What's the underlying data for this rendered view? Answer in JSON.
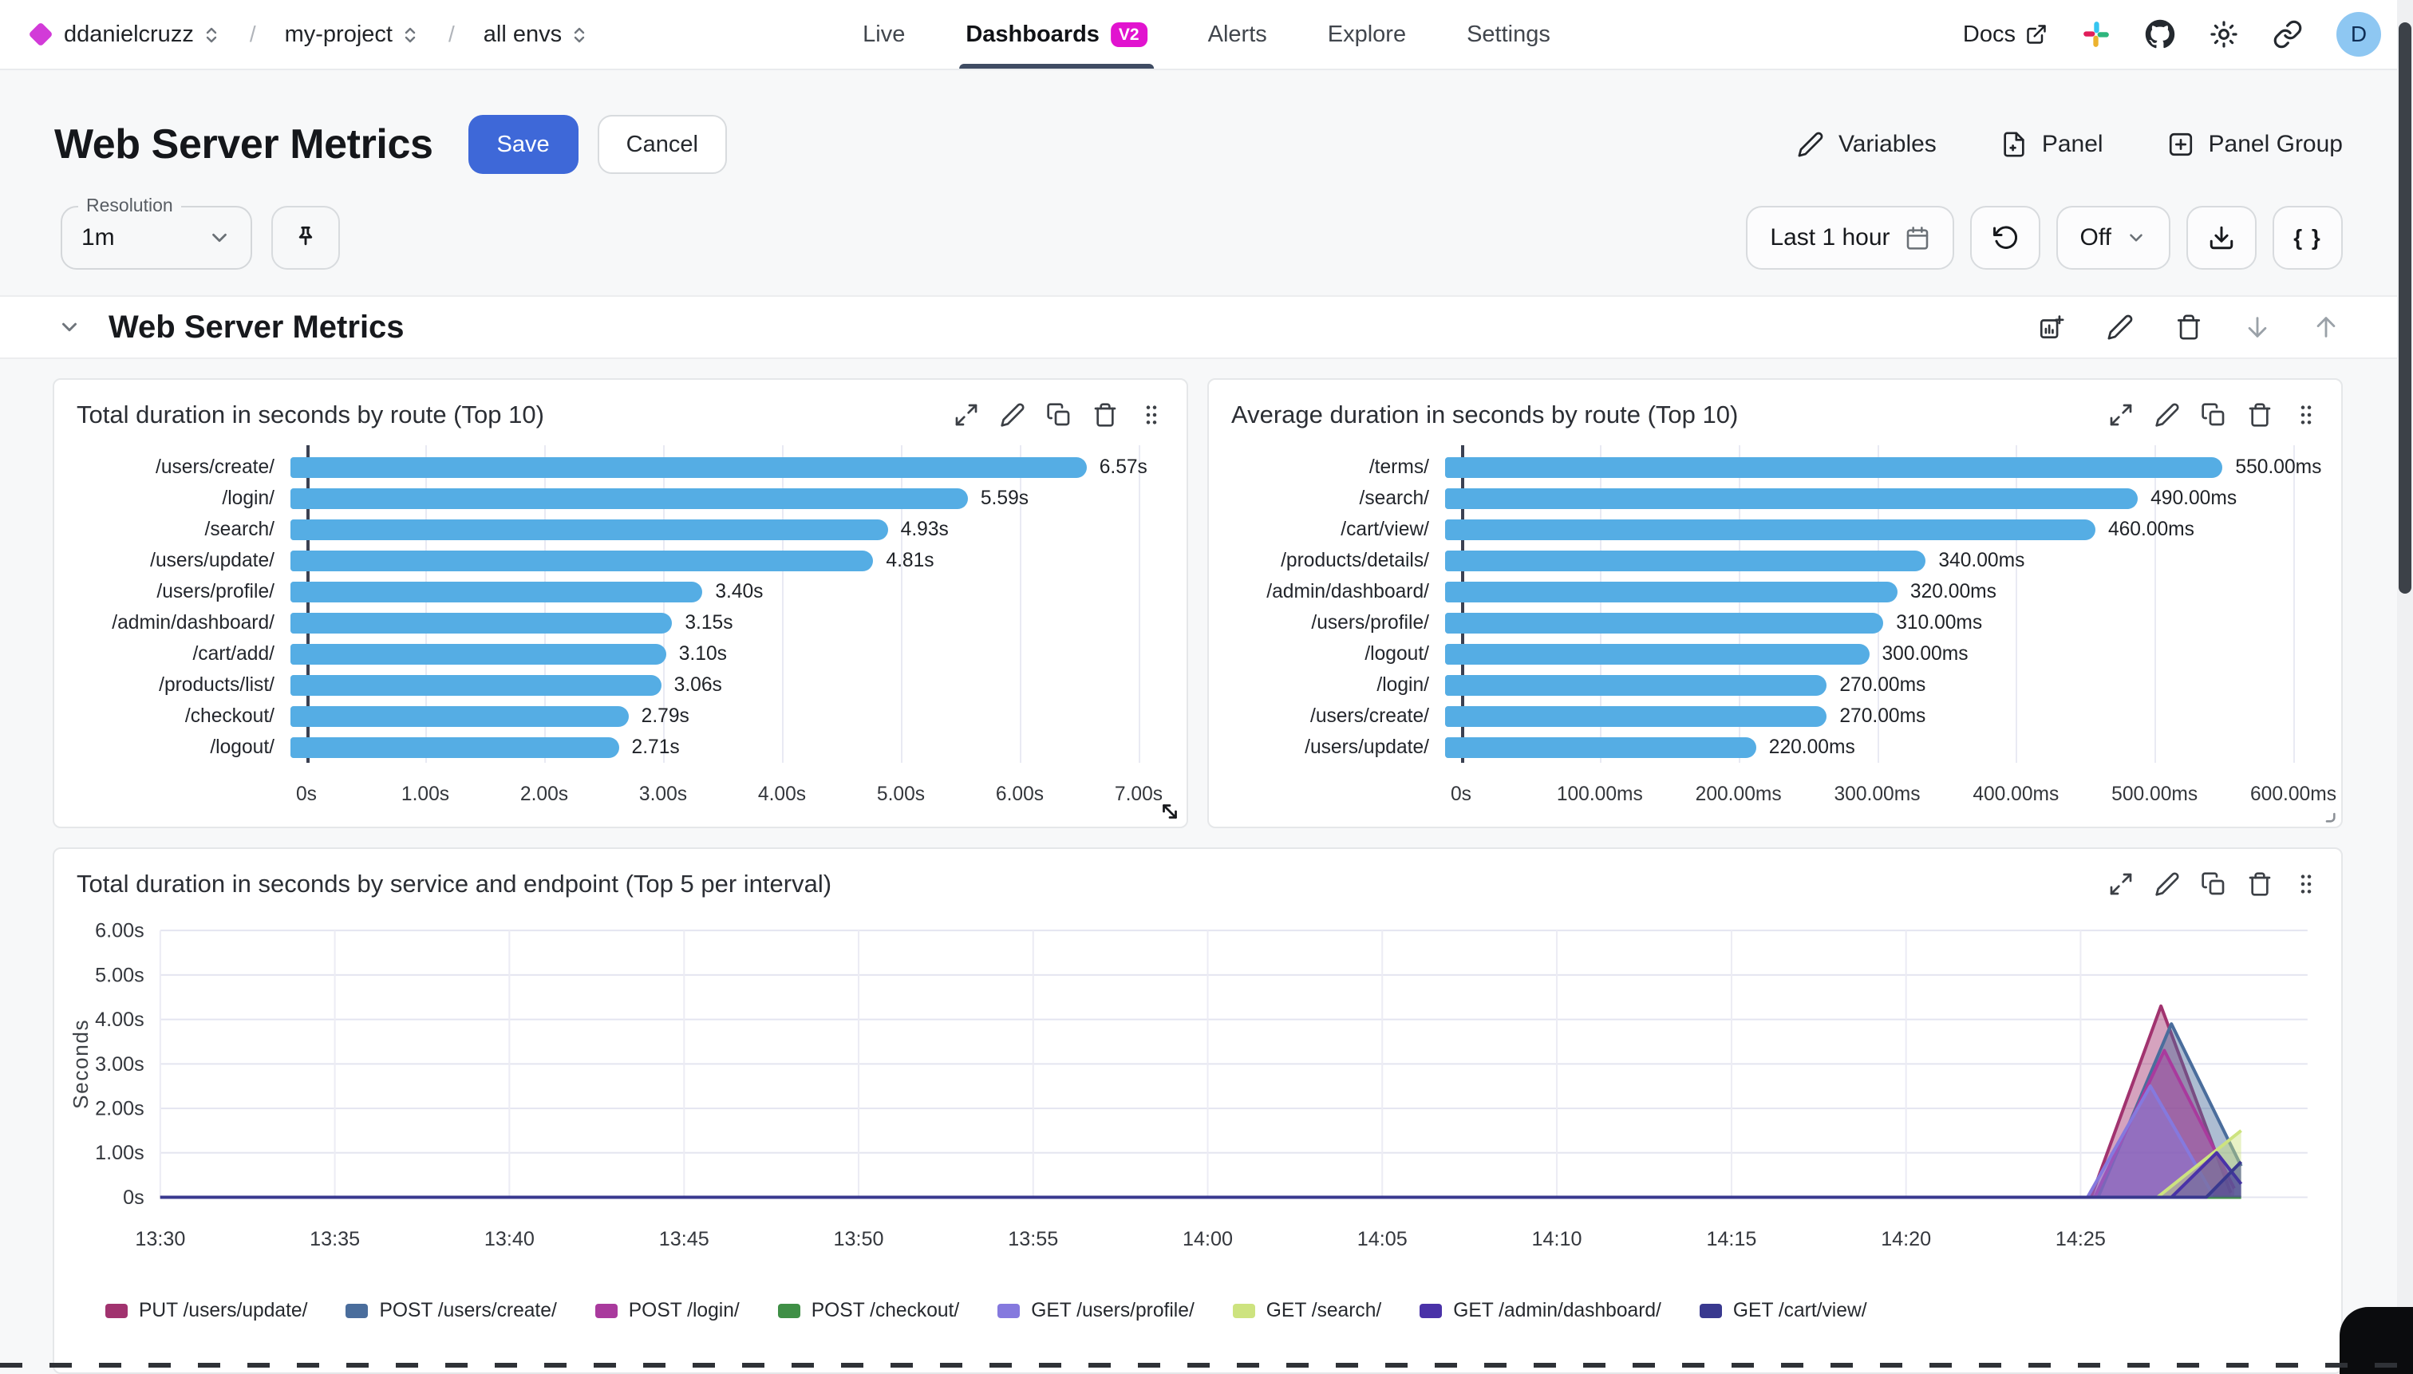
{
  "header": {
    "breadcrumb": {
      "org": "ddanielcruzz",
      "separator": "/",
      "project": "my-project",
      "env": "all envs"
    },
    "tabs": [
      {
        "label": "Live",
        "active": false
      },
      {
        "label": "Dashboards",
        "badge": "V2",
        "active": true
      },
      {
        "label": "Alerts",
        "active": false
      },
      {
        "label": "Explore",
        "active": false
      },
      {
        "label": "Settings",
        "active": false
      }
    ],
    "docs_label": "Docs",
    "avatar_letter": "D"
  },
  "toolbar": {
    "title": "Web Server Metrics",
    "save_label": "Save",
    "cancel_label": "Cancel",
    "variables_label": "Variables",
    "panel_label": "Panel",
    "panel_group_label": "Panel Group"
  },
  "controls": {
    "resolution_label": "Resolution",
    "resolution_value": "1m",
    "time_range": "Last 1 hour",
    "auto_refresh": "Off",
    "braces_label": "{ }"
  },
  "section": {
    "title": "Web Server Metrics"
  },
  "icons": {
    "breadcrumb-select": "⇅",
    "external-link": "↗",
    "slack": "pinwheel",
    "github": "octocat",
    "theme": "sun",
    "share": "chain-link",
    "edit": "pencil",
    "add-panel": "file-plus",
    "add-panel-group": "plus-square",
    "pin": "pushpin",
    "calendar": "calendar",
    "refresh": "↺",
    "download": "⤓",
    "query": "{ }",
    "expand": "diagonal-arrows",
    "copy": "⧉",
    "delete": "trash",
    "drag": "six-dots",
    "add-chart": "chart-plus",
    "move-down": "↓",
    "move-up": "↑",
    "collapse": "⌄"
  },
  "colors": {
    "accent_blue": "#3e68d8",
    "badge_magenta": "#e113cf",
    "brand_diamond": "#d23bd8",
    "bar_blue": "#55ade4",
    "active_tab_underline": "#3f4c63",
    "avatar_bg": "#8ec7f2"
  },
  "chart_data": [
    {
      "type": "bar",
      "orientation": "horizontal",
      "title": "Total duration in seconds by route (Top 10)",
      "categories": [
        "/users/create/",
        "/login/",
        "/search/",
        "/users/update/",
        "/users/profile/",
        "/admin/dashboard/",
        "/cart/add/",
        "/products/list/",
        "/checkout/",
        "/logout/"
      ],
      "values": [
        6.57,
        5.59,
        4.93,
        4.81,
        3.4,
        3.15,
        3.1,
        3.06,
        2.79,
        2.71
      ],
      "value_labels": [
        "6.57s",
        "5.59s",
        "4.93s",
        "4.81s",
        "3.40s",
        "3.15s",
        "3.10s",
        "3.06s",
        "2.79s",
        "2.71s"
      ],
      "xlim": [
        0,
        7
      ],
      "x_ticks": [
        "0s",
        "1.00s",
        "2.00s",
        "3.00s",
        "4.00s",
        "5.00s",
        "6.00s",
        "7.00s"
      ],
      "bar_color": "#55ade4",
      "grid": true
    },
    {
      "type": "bar",
      "orientation": "horizontal",
      "title": "Average duration in seconds by route (Top 10)",
      "categories": [
        "/terms/",
        "/search/",
        "/cart/view/",
        "/products/details/",
        "/admin/dashboard/",
        "/users/profile/",
        "/logout/",
        "/login/",
        "/users/create/",
        "/users/update/"
      ],
      "values": [
        550,
        490,
        460,
        340,
        320,
        310,
        300,
        270,
        270,
        220
      ],
      "value_labels": [
        "550.00ms",
        "490.00ms",
        "460.00ms",
        "340.00ms",
        "320.00ms",
        "310.00ms",
        "300.00ms",
        "270.00ms",
        "270.00ms",
        "220.00ms"
      ],
      "xlim": [
        0,
        600
      ],
      "x_ticks": [
        "0s",
        "100.00ms",
        "200.00ms",
        "300.00ms",
        "400.00ms",
        "500.00ms",
        "600.00ms"
      ],
      "bar_color": "#55ade4",
      "grid": true
    },
    {
      "type": "area",
      "title": "Total duration in seconds by service and endpoint (Top 5 per interval)",
      "ylabel": "Seconds",
      "ylim": [
        0,
        6
      ],
      "y_ticks": [
        "0s",
        "1.00s",
        "2.00s",
        "3.00s",
        "4.00s",
        "5.00s",
        "6.00s"
      ],
      "x_ticks": [
        "13:30",
        "13:35",
        "13:40",
        "13:45",
        "13:50",
        "13:55",
        "14:00",
        "14:05",
        "14:10",
        "14:15",
        "14:20",
        "14:25"
      ],
      "x_tick_minutes": [
        0,
        5,
        10,
        15,
        20,
        25,
        30,
        35,
        40,
        45,
        50,
        55
      ],
      "x_domain_minutes": [
        0,
        61.5
      ],
      "grid": true,
      "legend_position": "bottom",
      "series": [
        {
          "name": "PUT /users/update/",
          "color": "#a1336f",
          "points_min_sec": [
            [
              0,
              0
            ],
            [
              55.3,
              0
            ],
            [
              57.3,
              4.3
            ],
            [
              59.3,
              0.1
            ]
          ]
        },
        {
          "name": "POST /users/create/",
          "color": "#4a6d9c",
          "points_min_sec": [
            [
              0,
              0
            ],
            [
              55.5,
              0
            ],
            [
              57.6,
              3.9
            ],
            [
              59.6,
              0.7
            ]
          ]
        },
        {
          "name": "POST /login/",
          "color": "#a93a9d",
          "points_min_sec": [
            [
              0,
              0
            ],
            [
              55.4,
              0
            ],
            [
              57.4,
              3.3
            ],
            [
              59.4,
              0.2
            ]
          ]
        },
        {
          "name": "POST /checkout/",
          "color": "#3f8f46",
          "points_min_sec": [
            [
              0,
              0
            ],
            [
              59.6,
              0
            ]
          ]
        },
        {
          "name": "GET /users/profile/",
          "color": "#8579de",
          "points_min_sec": [
            [
              0,
              0
            ],
            [
              55.2,
              0
            ],
            [
              57.0,
              2.5
            ],
            [
              58.8,
              0.05
            ]
          ]
        },
        {
          "name": "GET /search/",
          "color": "#cde37f",
          "points_min_sec": [
            [
              0,
              0
            ],
            [
              57.2,
              0
            ],
            [
              59.6,
              1.5
            ]
          ]
        },
        {
          "name": "GET /admin/dashboard/",
          "color": "#4a32a8",
          "points_min_sec": [
            [
              0,
              0
            ],
            [
              57.6,
              0
            ],
            [
              58.9,
              1.0
            ],
            [
              59.6,
              0.3
            ]
          ]
        },
        {
          "name": "GET /cart/view/",
          "color": "#39398f",
          "points_min_sec": [
            [
              0,
              0
            ],
            [
              58.6,
              0
            ],
            [
              59.6,
              0.8
            ]
          ]
        }
      ]
    }
  ]
}
